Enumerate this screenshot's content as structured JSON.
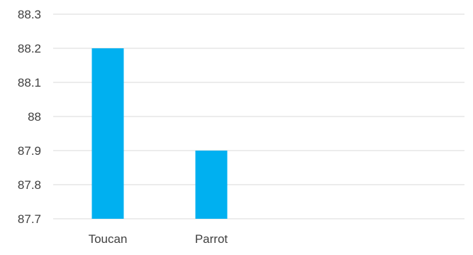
{
  "chart_data": {
    "type": "bar",
    "title": "",
    "xlabel": "",
    "ylabel": "",
    "categories": [
      "Toucan",
      "Parrot"
    ],
    "values": [
      88.2,
      87.9
    ],
    "ylim": [
      87.7,
      88.3
    ],
    "yticks": [
      "87.7",
      "87.8",
      "87.9",
      "88",
      "88.1",
      "88.2",
      "88.3"
    ],
    "grid": true,
    "legend": "none",
    "colors": {
      "bar": "#00B0F0",
      "grid": "#D9D9D9",
      "text": "#404040"
    }
  }
}
